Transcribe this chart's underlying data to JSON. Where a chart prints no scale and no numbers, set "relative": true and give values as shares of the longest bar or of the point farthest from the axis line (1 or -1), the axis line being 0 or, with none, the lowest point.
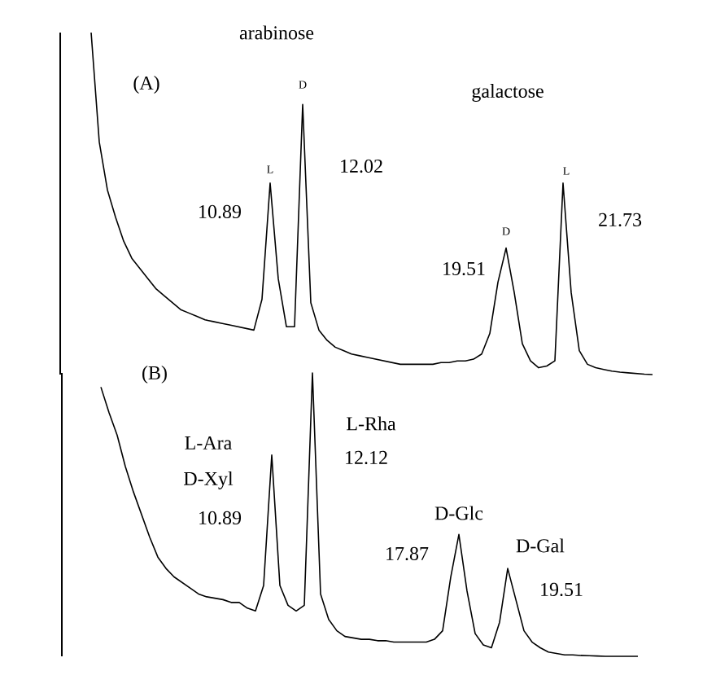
{
  "chart_data": [
    {
      "type": "line",
      "relative": true,
      "color": "#000000",
      "categories": [
        null,
        null,
        null,
        null,
        null,
        null,
        null,
        null,
        null,
        null,
        null,
        null,
        null,
        null,
        null,
        null,
        null,
        null,
        null,
        null,
        null,
        null,
        null,
        null,
        null,
        null,
        null,
        null,
        null,
        null,
        null,
        null,
        null,
        null,
        null,
        null,
        null,
        null,
        null,
        null,
        null,
        null,
        null,
        null,
        null,
        null,
        null,
        null,
        null,
        null,
        null,
        null,
        null,
        null,
        null,
        null,
        null,
        null,
        null,
        null,
        null,
        null,
        null,
        null,
        null,
        null,
        null,
        null,
        null,
        null
      ],
      "values": [
        1.0,
        0.68,
        0.54,
        0.46,
        0.39,
        0.34,
        0.31,
        0.28,
        0.25,
        0.23,
        0.21,
        0.19,
        0.18,
        0.17,
        0.16,
        0.155,
        0.15,
        0.145,
        0.14,
        0.135,
        0.13,
        0.22,
        0.56,
        0.28,
        0.14,
        0.14,
        0.79,
        0.21,
        0.13,
        0.1,
        0.08,
        0.07,
        0.06,
        0.055,
        0.05,
        0.045,
        0.04,
        0.035,
        0.03,
        0.03,
        0.03,
        0.03,
        0.03,
        0.035,
        0.035,
        0.04,
        0.04,
        0.045,
        0.06,
        0.12,
        0.27,
        0.37,
        0.24,
        0.09,
        0.04,
        0.02,
        0.025,
        0.04,
        0.56,
        0.24,
        0.07,
        0.03,
        0.02,
        0.015,
        0.01,
        0.007,
        0.005,
        0.003,
        0.001,
        0.0
      ],
      "annotations": [
        "(A)",
        "arabinose",
        "galactose",
        "L",
        "10.89",
        "D",
        "12.02",
        "D",
        "19.51",
        "L",
        "21.73"
      ]
    },
    {
      "type": "line",
      "relative": true,
      "color": "#000000",
      "categories": [
        null,
        null,
        null,
        null,
        null,
        null,
        null,
        null,
        null,
        null,
        null,
        null,
        null,
        null,
        null,
        null,
        null,
        null,
        null,
        null,
        null,
        null,
        null,
        null,
        null,
        null,
        null,
        null,
        null,
        null,
        null,
        null,
        null,
        null,
        null,
        null,
        null,
        null,
        null,
        null,
        null,
        null,
        null,
        null,
        null,
        null,
        null,
        null,
        null,
        null,
        null,
        null,
        null,
        null,
        null,
        null,
        null,
        null,
        null,
        null,
        null,
        null,
        null,
        null,
        null,
        null,
        null
      ],
      "values": [
        0.95,
        0.86,
        0.78,
        0.67,
        0.58,
        0.5,
        0.42,
        0.35,
        0.31,
        0.28,
        0.26,
        0.24,
        0.22,
        0.21,
        0.205,
        0.2,
        0.19,
        0.19,
        0.17,
        0.16,
        0.25,
        0.71,
        0.25,
        0.18,
        0.16,
        0.18,
        1.0,
        0.22,
        0.13,
        0.09,
        0.07,
        0.065,
        0.06,
        0.06,
        0.055,
        0.055,
        0.05,
        0.05,
        0.05,
        0.05,
        0.05,
        0.06,
        0.09,
        0.28,
        0.43,
        0.23,
        0.08,
        0.04,
        0.03,
        0.12,
        0.31,
        0.2,
        0.09,
        0.05,
        0.03,
        0.015,
        0.01,
        0.005,
        0.005,
        0.003,
        0.002,
        0.001,
        0.0,
        0.0,
        0.0,
        0.0,
        0.0
      ],
      "annotations": [
        "(B)",
        "L-Ara",
        "D-Xyl",
        "10.89",
        "L-Rha",
        "12.12",
        "D-Glc",
        "17.87",
        "D-Gal",
        "19.51"
      ]
    }
  ]
}
